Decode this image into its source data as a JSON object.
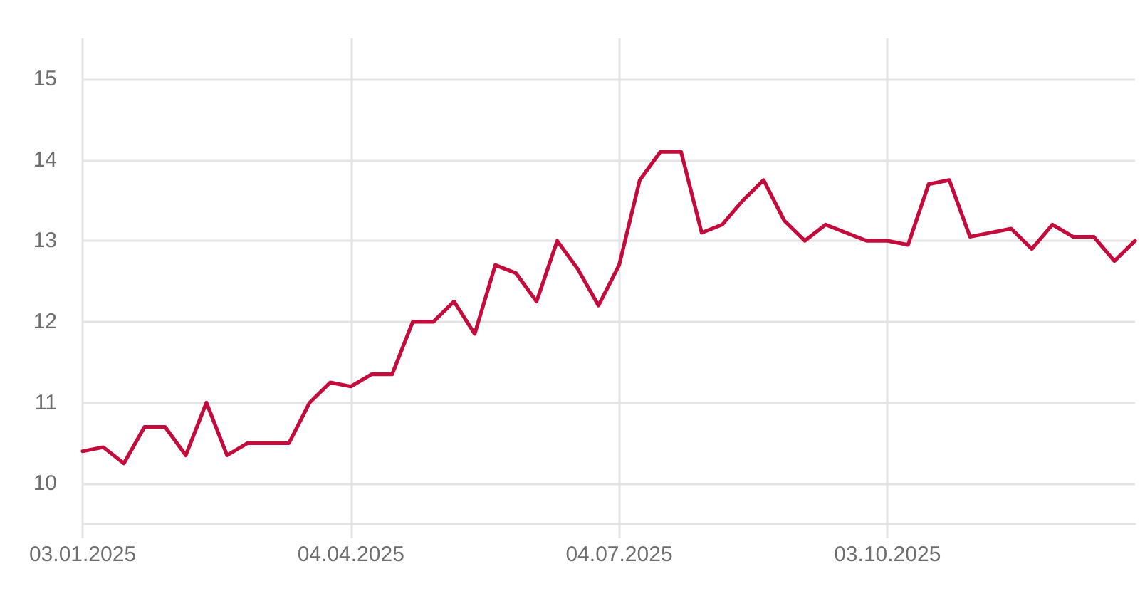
{
  "chart_data": {
    "type": "line",
    "x": [
      "2025-01-03",
      "2025-01-10",
      "2025-01-17",
      "2025-01-24",
      "2025-01-31",
      "2025-02-07",
      "2025-02-14",
      "2025-02-21",
      "2025-02-28",
      "2025-03-07",
      "2025-03-14",
      "2025-03-21",
      "2025-03-28",
      "2025-04-04",
      "2025-04-11",
      "2025-04-18",
      "2025-04-25",
      "2025-05-02",
      "2025-05-09",
      "2025-05-16",
      "2025-05-23",
      "2025-05-30",
      "2025-06-06",
      "2025-06-13",
      "2025-06-20",
      "2025-06-27",
      "2025-07-04",
      "2025-07-11",
      "2025-07-18",
      "2025-07-25",
      "2025-08-01",
      "2025-08-08",
      "2025-08-15",
      "2025-08-22",
      "2025-08-29",
      "2025-09-05",
      "2025-09-12",
      "2025-09-19",
      "2025-09-26",
      "2025-10-03",
      "2025-10-10",
      "2025-10-17",
      "2025-10-24",
      "2025-10-31",
      "2025-11-07",
      "2025-11-14",
      "2025-11-21",
      "2025-11-28",
      "2025-12-05",
      "2025-12-12",
      "2025-12-19",
      "2025-12-26"
    ],
    "values": [
      10.4,
      10.45,
      10.25,
      10.7,
      10.7,
      10.35,
      11.0,
      10.35,
      10.5,
      10.5,
      10.5,
      11.0,
      11.25,
      11.2,
      11.35,
      11.35,
      12.0,
      12.0,
      12.25,
      11.85,
      12.7,
      12.6,
      12.25,
      13.0,
      12.65,
      12.2,
      12.7,
      13.75,
      14.1,
      14.1,
      13.1,
      13.2,
      13.5,
      13.75,
      13.25,
      13.0,
      13.2,
      13.1,
      13.0,
      13.0,
      12.95,
      13.7,
      13.75,
      13.05,
      13.1,
      13.15,
      12.9,
      13.2,
      13.05,
      13.05,
      12.75,
      13.0
    ],
    "color": "#c40c3c",
    "xlim": [
      "2025-01-03",
      "2025-12-26"
    ],
    "xticks": [
      {
        "value": "2025-01-03",
        "label": "03.01.2025"
      },
      {
        "value": "2025-04-04",
        "label": "04.04.2025"
      },
      {
        "value": "2025-07-04",
        "label": "04.07.2025"
      },
      {
        "value": "2025-10-03",
        "label": "03.10.2025"
      }
    ],
    "ylim": [
      9.5,
      15.5
    ],
    "yticks": [
      10,
      11,
      12,
      13,
      14,
      15
    ],
    "grid": true,
    "marker": "none",
    "line_style": "solid"
  }
}
